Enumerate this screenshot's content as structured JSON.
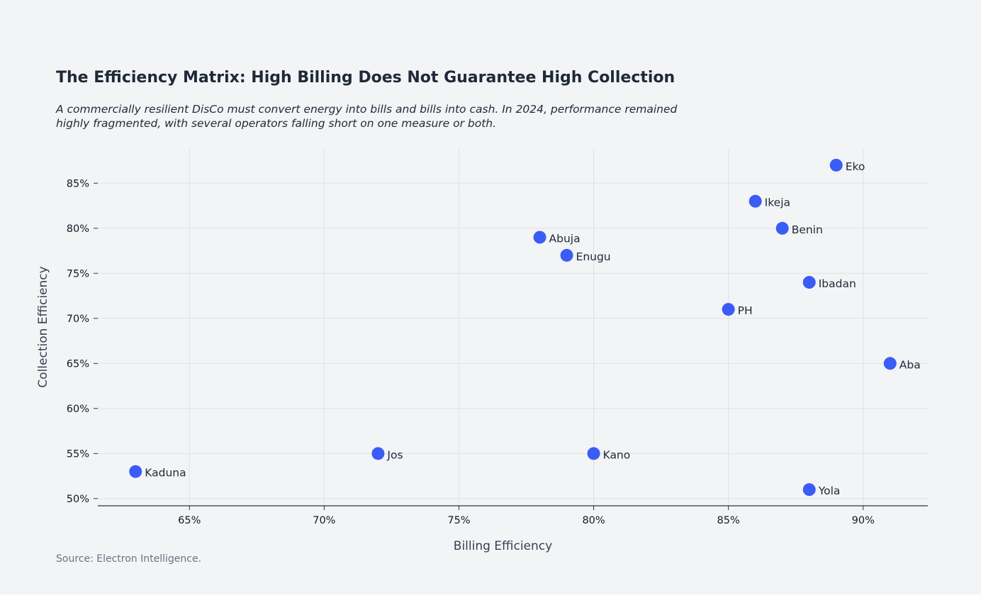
{
  "title": "The Efficiency Matrix: High Billing Does Not Guarantee High Collection",
  "subtitle": "A commercially resilient DisCo must convert energy into bills and bills into cash. In 2024, performance remained highly fragmented, with several operators falling short on one measure or both.",
  "source": "Source: Electron Intelligence.",
  "chart_data": {
    "type": "scatter",
    "xlabel": "Billing Efficiency",
    "ylabel": "Collection Efficiency",
    "xlim": [
      61.6,
      92.4
    ],
    "ylim": [
      49.2,
      88.8
    ],
    "xticks": [
      65,
      70,
      75,
      80,
      85,
      90
    ],
    "yticks": [
      50,
      55,
      60,
      65,
      70,
      75,
      80,
      85
    ],
    "xtick_labels": [
      "65%",
      "70%",
      "75%",
      "80%",
      "85%",
      "90%"
    ],
    "ytick_labels": [
      "50%",
      "55%",
      "60%",
      "65%",
      "70%",
      "75%",
      "80%",
      "85%"
    ],
    "grid": true,
    "point_color": "#3a5cf7",
    "points": [
      {
        "label": "Eko",
        "x": 89,
        "y": 87
      },
      {
        "label": "Ikeja",
        "x": 86,
        "y": 83
      },
      {
        "label": "Benin",
        "x": 87,
        "y": 80
      },
      {
        "label": "Abuja",
        "x": 78,
        "y": 79
      },
      {
        "label": "Enugu",
        "x": 79,
        "y": 77
      },
      {
        "label": "Ibadan",
        "x": 88,
        "y": 74
      },
      {
        "label": "PH",
        "x": 85,
        "y": 71
      },
      {
        "label": "Aba",
        "x": 91,
        "y": 65
      },
      {
        "label": "Jos",
        "x": 72,
        "y": 55
      },
      {
        "label": "Kano",
        "x": 80,
        "y": 55
      },
      {
        "label": "Kaduna",
        "x": 63,
        "y": 53
      },
      {
        "label": "Yola",
        "x": 88,
        "y": 51
      }
    ]
  }
}
